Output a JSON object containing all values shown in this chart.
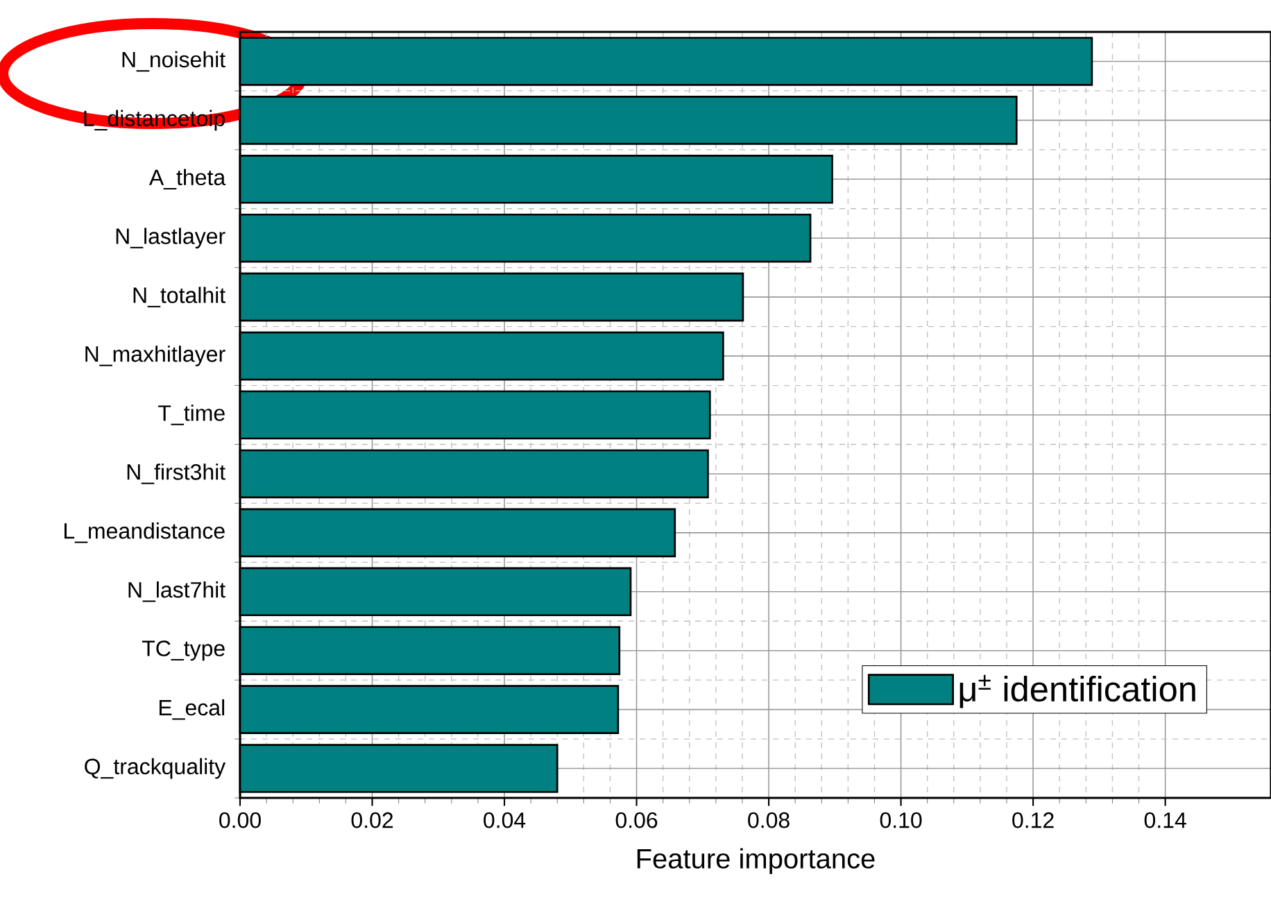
{
  "chart_data": {
    "type": "bar",
    "orientation": "horizontal",
    "xlabel": "Feature importance",
    "categories": [
      "N_noisehit",
      "L_distancetoip",
      "A_theta",
      "N_lastlayer",
      "N_totalhit",
      "N_maxhitlayer",
      "T_time",
      "N_first3hit",
      "L_meandistance",
      "N_last7hit",
      "TC_type",
      "E_ecal",
      "Q_trackquality"
    ],
    "series": [
      {
        "name": "μ$^{±}$ identification",
        "color": "#008080",
        "values": [
          0.1289,
          0.1175,
          0.0896,
          0.0863,
          0.0761,
          0.0731,
          0.0711,
          0.0708,
          0.0658,
          0.0591,
          0.0574,
          0.0572,
          0.048
        ]
      }
    ],
    "xlim": [
      0,
      0.156
    ],
    "xticks": [
      {
        "value": 0,
        "label": "0.00"
      },
      {
        "value": 0.02,
        "label": "0.02"
      },
      {
        "value": 0.04,
        "label": "0.04"
      },
      {
        "value": 0.06,
        "label": "0.06"
      },
      {
        "value": 0.08,
        "label": "0.08"
      },
      {
        "value": 0.1,
        "label": "0.10"
      },
      {
        "value": 0.12,
        "label": "0.12"
      },
      {
        "value": 0.14,
        "label": "0.14"
      }
    ],
    "grid": true,
    "legend": "bottom right"
  }
}
